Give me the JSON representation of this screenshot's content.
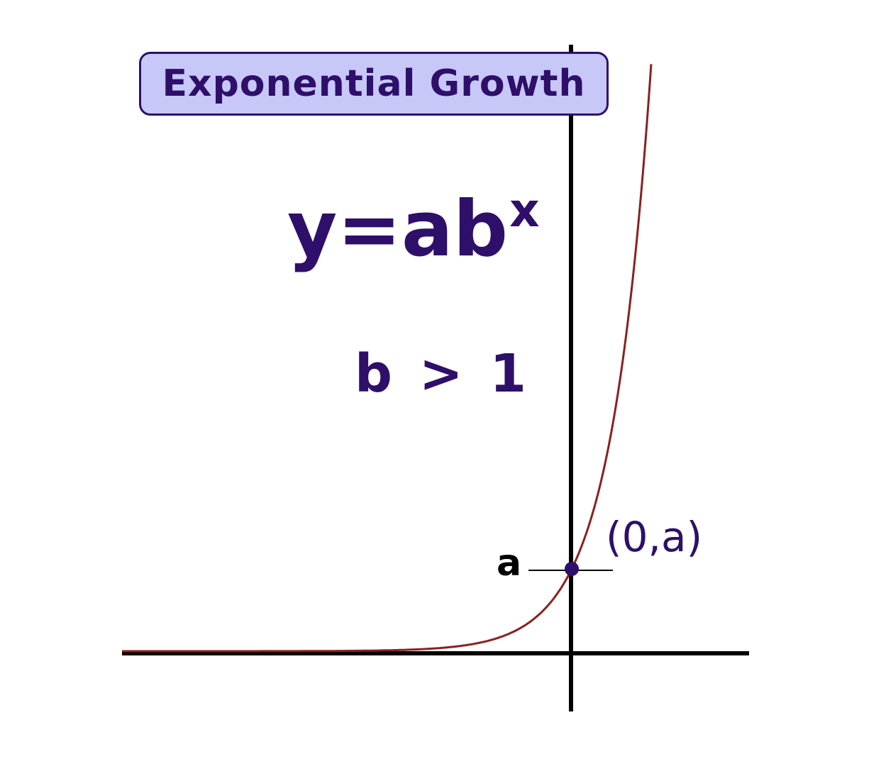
{
  "title": "Exponential Growth",
  "equation": {
    "base": "y=ab",
    "exponent": "x"
  },
  "condition": "b > 1",
  "intercept_label": "a",
  "point_label": "(0,a)",
  "colors": {
    "title_fill": "#c8c8f8",
    "text": "#2e0f6a",
    "curve": "#8b2020",
    "axes": "#000000",
    "point": "#2e0f6a"
  }
}
